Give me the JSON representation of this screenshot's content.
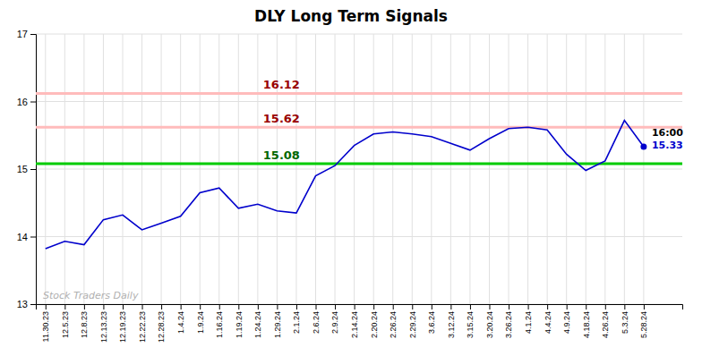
{
  "chart_data": {
    "type": "line",
    "title": "DLY Long Term Signals",
    "categories": [
      "11.30.23",
      "12.5.23",
      "12.8.23",
      "12.13.23",
      "12.19.23",
      "12.22.23",
      "12.28.23",
      "1.4.24",
      "1.9.24",
      "1.16.24",
      "1.19.24",
      "1.24.24",
      "1.29.24",
      "2.1.24",
      "2.6.24",
      "2.9.24",
      "2.14.24",
      "2.20.24",
      "2.26.24",
      "2.29.24",
      "3.6.24",
      "3.12.24",
      "3.15.24",
      "3.20.24",
      "3.26.24",
      "4.1.24",
      "4.4.24",
      "4.9.24",
      "4.18.24",
      "4.26.24",
      "5.3.24",
      "5.28.24"
    ],
    "values": [
      13.82,
      13.93,
      13.88,
      14.25,
      14.32,
      14.1,
      14.2,
      14.3,
      14.65,
      14.72,
      14.42,
      14.48,
      14.38,
      14.35,
      14.9,
      15.05,
      15.35,
      15.52,
      15.55,
      15.52,
      15.48,
      15.38,
      15.28,
      15.45,
      15.6,
      15.62,
      15.58,
      15.22,
      14.98,
      15.12,
      15.72,
      15.33
    ],
    "color": "#0000cc",
    "reference_lines": [
      {
        "value": 16.12,
        "label": "16.12",
        "color": "#ffbbbb",
        "label_color": "#990000"
      },
      {
        "value": 15.62,
        "label": "15.62",
        "color": "#ffbbbb",
        "label_color": "#990000"
      },
      {
        "value": 15.08,
        "label": "15.08",
        "color": "#00cc00",
        "label_color": "#006600"
      }
    ],
    "annotations": [
      {
        "text": "16:00",
        "color": "#000000"
      },
      {
        "text": "15.33",
        "color": "#0000cc"
      }
    ],
    "watermark": "Stock Traders Daily",
    "ylim": [
      13.0,
      17.0
    ],
    "yticks": [
      13,
      14,
      15,
      16,
      17
    ],
    "grid": true
  }
}
